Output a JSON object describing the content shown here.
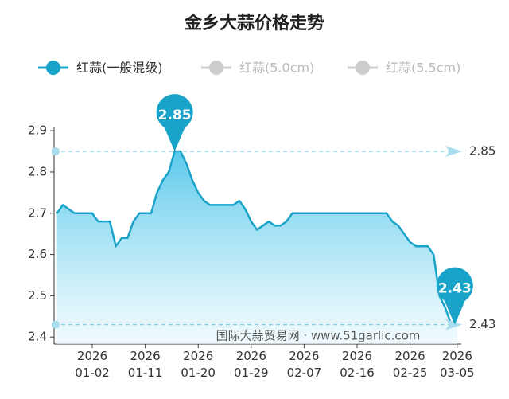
{
  "chart_data": {
    "type": "line",
    "title": "金乡大蒜价格走势",
    "categories": [
      null,
      null,
      null,
      null,
      null,
      null,
      "2026 01-02",
      null,
      null,
      null,
      null,
      null,
      null,
      null,
      null,
      "2026 01-11",
      null,
      null,
      null,
      null,
      null,
      null,
      null,
      null,
      "2026 01-20",
      null,
      null,
      null,
      null,
      null,
      null,
      null,
      null,
      "2026 01-29",
      null,
      null,
      null,
      null,
      null,
      null,
      null,
      null,
      "2026 02-07",
      null,
      null,
      null,
      null,
      null,
      null,
      null,
      null,
      "2026 02-16",
      null,
      null,
      null,
      null,
      null,
      null,
      null,
      null,
      "2026 02-25",
      null,
      null,
      null,
      null,
      null,
      null,
      null,
      "2026 03-05"
    ],
    "series": [
      {
        "name": "红蒜(一般混级)",
        "color": "#1aa3c8",
        "values": [
          2.7,
          2.72,
          2.71,
          2.7,
          2.7,
          2.7,
          2.7,
          2.68,
          2.68,
          2.68,
          2.62,
          2.64,
          2.64,
          2.68,
          2.7,
          2.7,
          2.7,
          2.75,
          2.78,
          2.8,
          2.85,
          2.85,
          2.82,
          2.78,
          2.75,
          2.73,
          2.72,
          2.72,
          2.72,
          2.72,
          2.72,
          2.73,
          2.71,
          2.68,
          2.66,
          2.67,
          2.68,
          2.67,
          2.67,
          2.68,
          2.7,
          2.7,
          2.7,
          2.7,
          2.7,
          2.7,
          2.7,
          2.7,
          2.7,
          2.7,
          2.7,
          2.7,
          2.7,
          2.7,
          2.7,
          2.7,
          2.7,
          2.68,
          2.67,
          2.65,
          2.63,
          2.62,
          2.62,
          2.62,
          2.6,
          2.5,
          2.47,
          2.43,
          2.43
        ]
      }
    ],
    "legend_inactive": [
      {
        "name": "红蒜(5.0cm)",
        "color": "#cccccc"
      },
      {
        "name": "红蒜(5.5cm)",
        "color": "#cccccc"
      }
    ],
    "ylim": [
      2.383,
      2.908
    ],
    "yticks": [
      2.4,
      2.5,
      2.6,
      2.7,
      2.8,
      2.9
    ],
    "watermark": "国际大蒜贸易网 · www.51garlic.com"
  }
}
